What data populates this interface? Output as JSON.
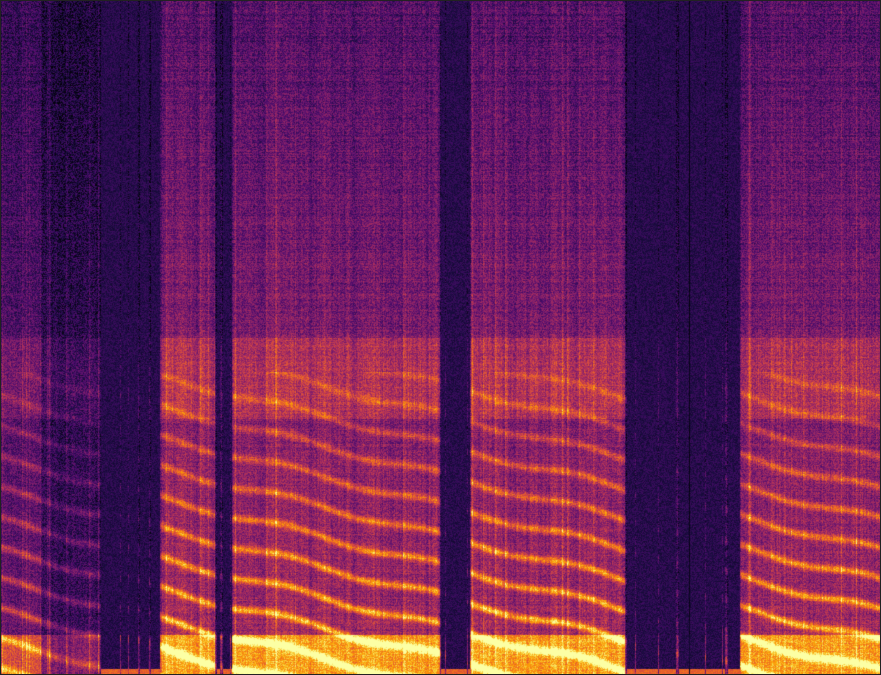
{
  "chart_data": {
    "type": "heatmap",
    "title": "",
    "xlabel": "",
    "ylabel": "",
    "colormap": "inferno",
    "colors": [
      "#000004",
      "#1b0c41",
      "#4a0c6b",
      "#781c6d",
      "#a52c60",
      "#cf4446",
      "#ed6925",
      "#fb9b06",
      "#f7d13d",
      "#fcffa4"
    ],
    "grid": false,
    "legend": "none"
  }
}
